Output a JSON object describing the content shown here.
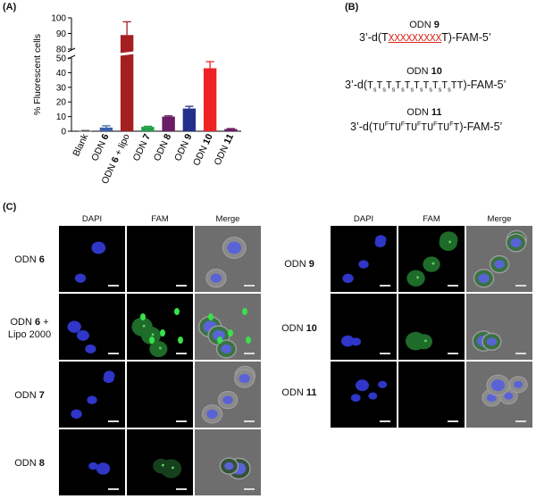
{
  "panelA": {
    "letter": "(A)",
    "chart_data": {
      "type": "bar",
      "ylabel": "% Fluorescent cells",
      "broken_axis": true,
      "ylim_lower": [
        0,
        50
      ],
      "ylim_upper": [
        80,
        100
      ],
      "yticks_lower": [
        "0",
        "10",
        "20",
        "30",
        "40",
        "50"
      ],
      "yticks_upper": [
        "80",
        "90",
        "100"
      ],
      "categories": [
        {
          "pre": "Blank",
          "bold": "",
          "post": ""
        },
        {
          "pre": "ODN ",
          "bold": "6",
          "post": ""
        },
        {
          "pre": "ODN ",
          "bold": "6",
          "post": " + lipo"
        },
        {
          "pre": "ODN ",
          "bold": "7",
          "post": ""
        },
        {
          "pre": "ODN ",
          "bold": "8",
          "post": ""
        },
        {
          "pre": "ODN ",
          "bold": "9",
          "post": ""
        },
        {
          "pre": "ODN ",
          "bold": "10",
          "post": ""
        },
        {
          "pre": "ODN ",
          "bold": "11",
          "post": ""
        }
      ],
      "values": [
        0.3,
        2.5,
        89,
        3.0,
        10.0,
        15.5,
        43.0,
        1.5
      ],
      "errors": [
        0.2,
        1.2,
        8.5,
        0.4,
        0.5,
        1.5,
        4.5,
        0.3
      ],
      "colors": [
        "#5a5a5a",
        "#3c5fa8",
        "#a51e22",
        "#22a04a",
        "#6a1e63",
        "#23308a",
        "#ee2224",
        "#6a1e63"
      ]
    }
  },
  "panelB": {
    "letter": "(B)",
    "odn9": {
      "title_pre": "ODN ",
      "title_num": "9",
      "prefix": "3’-d(T",
      "xs": "XXXXXXXXX",
      "suffix": "T)-FAM-5’"
    },
    "odn10": {
      "title_pre": "ODN ",
      "title_num": "10",
      "prefix": "3’-d(",
      "unit": "T",
      "sub": "s",
      "repeat": 9,
      "tail": "TT)-FAM-5’"
    },
    "odn11": {
      "title_pre": "ODN ",
      "title_num": "11",
      "prefix": "3’-d(T",
      "unit": "U",
      "sup": "F",
      "repeat": 5,
      "tail": "T)-FAM-5’"
    }
  },
  "panelC": {
    "letter": "(C)",
    "columns": [
      "DAPI",
      "FAM",
      "Merge"
    ],
    "left_rows": [
      {
        "pre": "ODN ",
        "num": "6",
        "post": "",
        "line2": ""
      },
      {
        "pre": "ODN ",
        "num": "6",
        "post": " +",
        "line2": "Lipo 2000"
      },
      {
        "pre": "ODN ",
        "num": "7",
        "post": "",
        "line2": ""
      },
      {
        "pre": "ODN ",
        "num": "8",
        "post": "",
        "line2": ""
      }
    ],
    "right_rows": [
      {
        "pre": "ODN ",
        "num": "9",
        "post": "",
        "line2": ""
      },
      {
        "pre": "ODN ",
        "num": "10",
        "post": "",
        "line2": ""
      },
      {
        "pre": "ODN ",
        "num": "11",
        "post": "",
        "line2": ""
      }
    ]
  }
}
